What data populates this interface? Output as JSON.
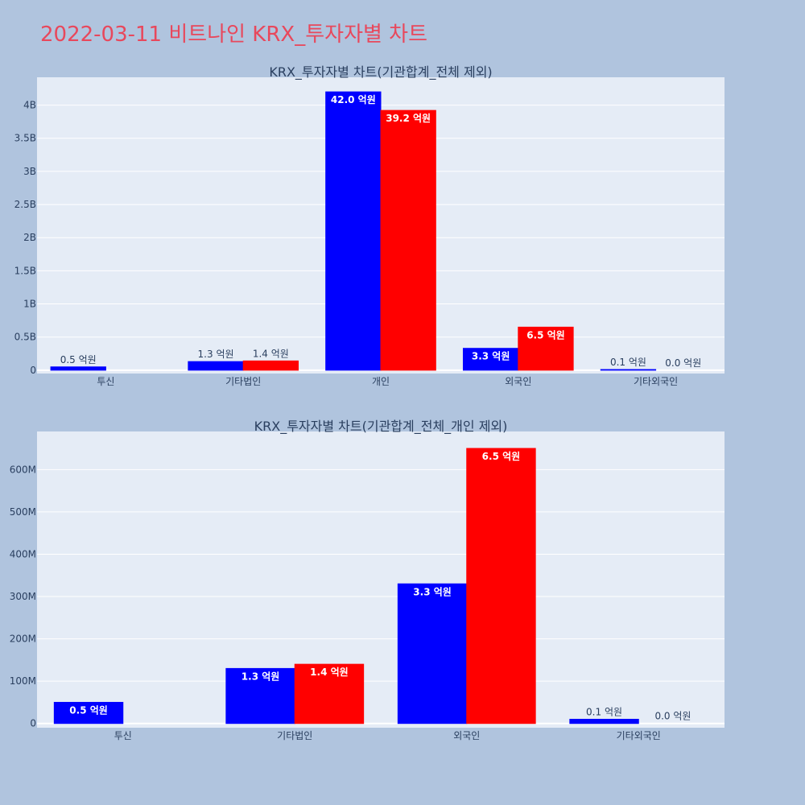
{
  "page": {
    "title": "2022-03-11 비트나인 KRX_투자자별 차트"
  },
  "colors": {
    "background": "#b0c4de",
    "plot_bg": "#e5ecf6",
    "buy": "#0000ff",
    "sell": "#ff0000",
    "title": "#e8485c",
    "text": "#2a3f5f"
  },
  "chart_data": [
    {
      "type": "bar",
      "title": "KRX_투자자별 차트(기관합계_전체 제외)",
      "categories": [
        "투신",
        "기타법인",
        "개인",
        "외국인",
        "기타외국인"
      ],
      "series": [
        {
          "color": "#0000ff",
          "values": [
            50000000,
            130000000,
            4200000000,
            330000000,
            10000000
          ],
          "labels": [
            "0.5 억원",
            "1.3 억원",
            "42.0 억원",
            "3.3 억원",
            "0.1 억원"
          ]
        },
        {
          "color": "#ff0000",
          "values": [
            0,
            140000000,
            3920000000,
            650000000,
            0
          ],
          "labels": [
            "",
            "1.4 억원",
            "39.2 억원",
            "6.5 억원",
            "0.0 억원"
          ]
        }
      ],
      "yticks": [
        0,
        500000000,
        1000000000,
        1500000000,
        2000000000,
        2500000000,
        3000000000,
        3500000000,
        4000000000
      ],
      "ytick_labels": [
        "0",
        "0.5B",
        "1B",
        "1.5B",
        "2B",
        "2.5B",
        "3B",
        "3.5B",
        "4B"
      ],
      "ylim": [
        -50000000,
        4420000000
      ],
      "grid": true
    },
    {
      "type": "bar",
      "title": "KRX_투자자별 차트(기관합계_전체_개인 제외)",
      "categories": [
        "투신",
        "기타법인",
        "외국인",
        "기타외국인"
      ],
      "series": [
        {
          "color": "#0000ff",
          "values": [
            50000000,
            130000000,
            330000000,
            10000000
          ],
          "labels": [
            "0.5 억원",
            "1.3 억원",
            "3.3 억원",
            "0.1 억원"
          ]
        },
        {
          "color": "#ff0000",
          "values": [
            0,
            140000000,
            650000000,
            0
          ],
          "labels": [
            "",
            "1.4 억원",
            "6.5 억원",
            "0.0 억원"
          ]
        }
      ],
      "yticks": [
        0,
        100000000,
        200000000,
        300000000,
        400000000,
        500000000,
        600000000
      ],
      "ytick_labels": [
        "0",
        "100M",
        "200M",
        "300M",
        "400M",
        "500M",
        "600M"
      ],
      "ylim": [
        -10000000,
        690000000
      ],
      "grid": true
    }
  ]
}
